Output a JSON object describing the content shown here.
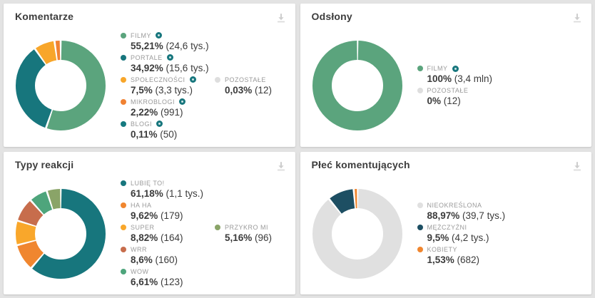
{
  "ui": {
    "background_color": "#e3e3e3",
    "card_background": "#ffffff",
    "accent_teal": "#17767d",
    "icons": {
      "download": "download-icon (arrow down to bar)",
      "eye": "eye-icon (visibility toggle)",
      "bullet": "legend-bullet (filled circle)"
    }
  },
  "chart_data": [
    {
      "type": "donut",
      "title": "Komentarze",
      "legend_position": "right",
      "series": [
        {
          "label": "FILMY",
          "value": 55.21,
          "pct_label": "55,21%",
          "count_label": "(24,6 tys.)",
          "color": "#5ba47d",
          "eye_icon": true,
          "legend_col": 1,
          "legend_row": 1
        },
        {
          "label": "PORTALE",
          "value": 34.92,
          "pct_label": "34,92%",
          "count_label": "(15,6 tys.)",
          "color": "#17767d",
          "eye_icon": true,
          "legend_col": 1,
          "legend_row": 2
        },
        {
          "label": "SPOŁECZNOŚCI",
          "value": 7.5,
          "pct_label": "7,5%",
          "count_label": "(3,3 tys.)",
          "color": "#f8a62a",
          "eye_icon": true,
          "legend_col": 1,
          "legend_row": 3
        },
        {
          "label": "MIKROBLOGI",
          "value": 2.22,
          "pct_label": "2,22%",
          "count_label": "(991)",
          "color": "#f08232",
          "eye_icon": true,
          "legend_col": 1,
          "legend_row": 4
        },
        {
          "label": "BLOGI",
          "value": 0.11,
          "pct_label": "0,11%",
          "count_label": "(50)",
          "color": "#157a80",
          "eye_icon": true,
          "legend_col": 1,
          "legend_row": 5
        },
        {
          "label": "POZOSTAŁE",
          "value": 0.03,
          "pct_label": "0,03%",
          "count_label": "(12)",
          "color": "#dedede",
          "eye_icon": false,
          "legend_col": 2,
          "legend_row": 3
        }
      ]
    },
    {
      "type": "donut",
      "title": "Odsłony",
      "legend_position": "right",
      "series": [
        {
          "label": "FILMY",
          "value": 100,
          "pct_label": "100%",
          "count_label": "(3,4 mln)",
          "color": "#5ba47d",
          "eye_icon": true,
          "legend_col": 1,
          "legend_row": 1
        },
        {
          "label": "POZOSTAŁE",
          "value": 0,
          "pct_label": "0%",
          "count_label": "(12)",
          "color": "#dedede",
          "eye_icon": false,
          "legend_col": 1,
          "legend_row": 2
        }
      ]
    },
    {
      "type": "donut",
      "title": "Typy reakcji",
      "legend_position": "right",
      "series": [
        {
          "label": "LUBIĘ TO!",
          "value": 61.18,
          "pct_label": "61,18%",
          "count_label": "(1,1 tys.)",
          "color": "#17767d",
          "eye_icon": false,
          "legend_col": 1,
          "legend_row": 1
        },
        {
          "label": "HA HA",
          "value": 9.62,
          "pct_label": "9,62%",
          "count_label": "(179)",
          "color": "#f0862f",
          "eye_icon": false,
          "legend_col": 1,
          "legend_row": 2
        },
        {
          "label": "SUPER",
          "value": 8.82,
          "pct_label": "8,82%",
          "count_label": "(164)",
          "color": "#f9a72b",
          "eye_icon": false,
          "legend_col": 1,
          "legend_row": 3
        },
        {
          "label": "WRR",
          "value": 8.6,
          "pct_label": "8,6%",
          "count_label": "(160)",
          "color": "#c76d4c",
          "eye_icon": false,
          "legend_col": 1,
          "legend_row": 4
        },
        {
          "label": "WOW",
          "value": 6.61,
          "pct_label": "6,61%",
          "count_label": "(123)",
          "color": "#4ea57c",
          "eye_icon": false,
          "legend_col": 1,
          "legend_row": 5
        },
        {
          "label": "PRZYKRO MI",
          "value": 5.16,
          "pct_label": "5,16%",
          "count_label": "(96)",
          "color": "#8aa468",
          "eye_icon": false,
          "legend_col": 2,
          "legend_row": 3
        }
      ]
    },
    {
      "type": "donut",
      "title": "Płeć komentujących",
      "legend_position": "right",
      "series": [
        {
          "label": "NIEOKREŚLONA",
          "value": 88.97,
          "pct_label": "88,97%",
          "count_label": "(39,7 tys.)",
          "color": "#e0e0e0",
          "eye_icon": false,
          "legend_col": 1,
          "legend_row": 1
        },
        {
          "label": "MĘŻCZYŹNI",
          "value": 9.5,
          "pct_label": "9,5%",
          "count_label": "(4,2 tys.)",
          "color": "#1d4f63",
          "eye_icon": false,
          "legend_col": 1,
          "legend_row": 2
        },
        {
          "label": "KOBIETY",
          "value": 1.53,
          "pct_label": "1,53%",
          "count_label": "(682)",
          "color": "#f0862f",
          "eye_icon": false,
          "legend_col": 1,
          "legend_row": 3
        }
      ]
    }
  ]
}
